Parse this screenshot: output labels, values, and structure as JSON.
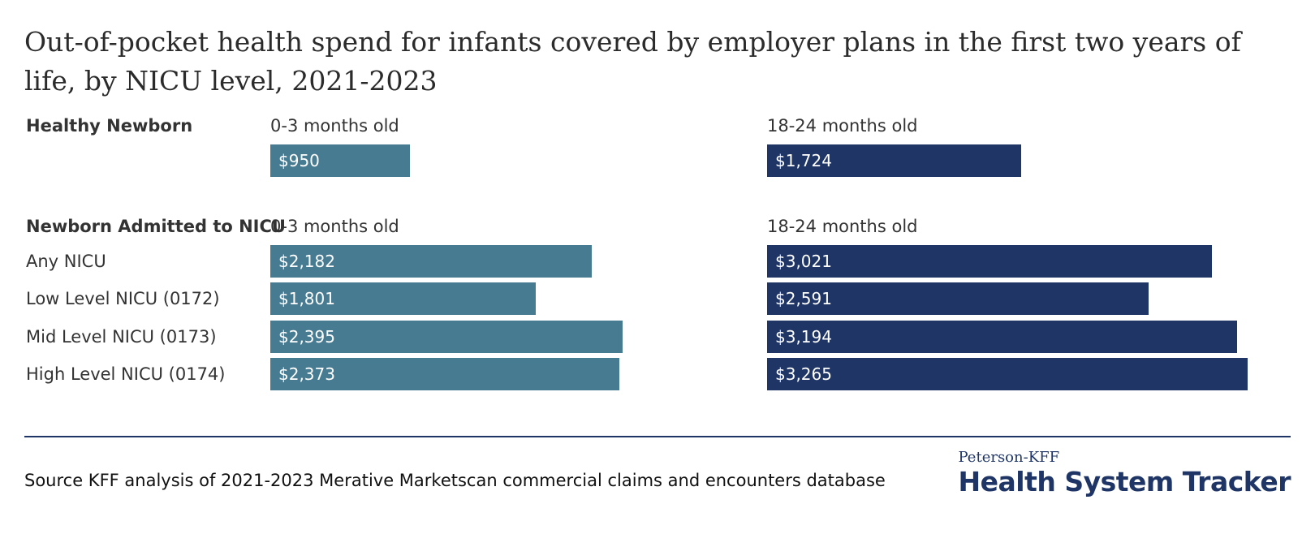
{
  "title": "Out-of-pocket health spend for infants covered by employer plans in the first two years of life, by NICU level, 2021-2023",
  "source": "Source KFF analysis of 2021-2023 Merative Marketscan commercial claims and encounters database",
  "brand": {
    "top": "Peterson-KFF",
    "main": "Health System Tracker"
  },
  "colors": {
    "age_0_3": "#477b92",
    "age_18_24": "#1f3566",
    "rule": "#1f3566"
  },
  "chart_data": {
    "type": "bar",
    "orientation": "horizontal",
    "groups": [
      {
        "name": "Healthy Newborn",
        "columns": [
          "0-3 months old",
          "18-24 months old"
        ],
        "rows": [
          {
            "label": "",
            "values": [
              950,
              1724
            ],
            "display": [
              "$950",
              "$1,724"
            ]
          }
        ]
      },
      {
        "name": "Newborn Admitted to NICU",
        "columns": [
          "0-3 months old",
          "18-24 months old"
        ],
        "rows": [
          {
            "label": "Any NICU",
            "values": [
              2182,
              3021
            ],
            "display": [
              "$2,182",
              "$3,021"
            ]
          },
          {
            "label": "Low Level NICU (0172)",
            "values": [
              1801,
              2591
            ],
            "display": [
              "$1,801",
              "$2,591"
            ]
          },
          {
            "label": "Mid Level NICU (0173)",
            "values": [
              2395,
              3194
            ],
            "display": [
              "$2,395",
              "$3,194"
            ]
          },
          {
            "label": "High Level NICU (0174)",
            "values": [
              2373,
              3265
            ],
            "display": [
              "$2,373",
              "$3,265"
            ]
          }
        ]
      }
    ],
    "series": [
      {
        "name": "0-3 months old",
        "color": "#477b92"
      },
      {
        "name": "18-24 months old",
        "color": "#1f3566"
      }
    ],
    "xlim": [
      0,
      3265
    ]
  }
}
